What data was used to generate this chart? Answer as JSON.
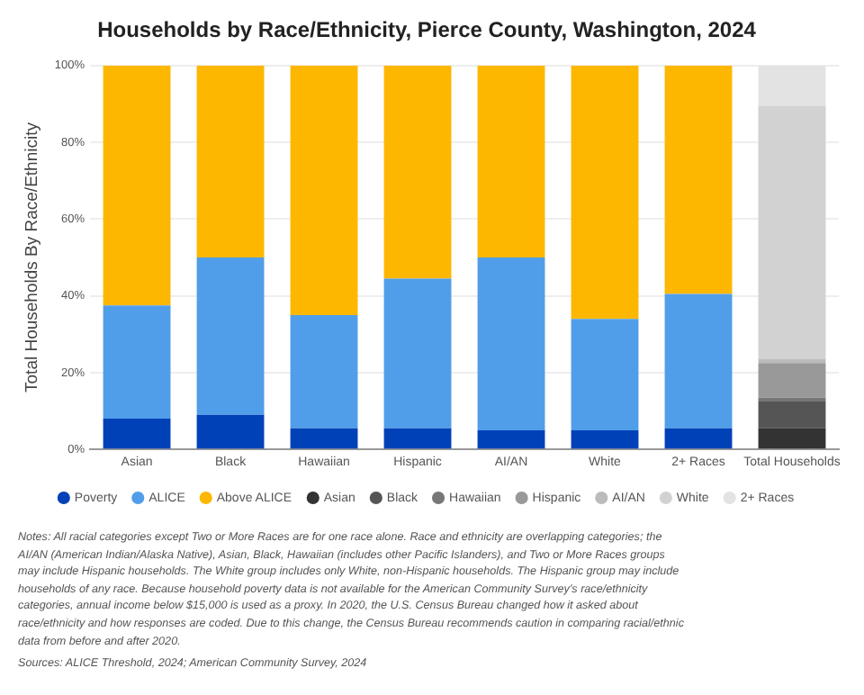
{
  "chart_data": {
    "type": "bar",
    "title": "Households by Race/Ethnicity, Pierce County, Washington, 2024",
    "ylabel": "Total Households By Race/Ethnicity",
    "categories": [
      "Asian",
      "Black",
      "Hawaiian",
      "Hispanic",
      "AI/AN",
      "White",
      "2+ Races",
      "Total Households"
    ],
    "stacked": true,
    "ylim": [
      0,
      100
    ],
    "yticks": [
      {
        "value": 0,
        "label": "0%"
      },
      {
        "value": 20,
        "label": "20%"
      },
      {
        "value": 40,
        "label": "40%"
      },
      {
        "value": 60,
        "label": "60%"
      },
      {
        "value": 80,
        "label": "80%"
      },
      {
        "value": 100,
        "label": "100%"
      }
    ],
    "grid": "y",
    "legend": "bottom",
    "series": [
      {
        "name": "Poverty",
        "color": "#0041b8",
        "values": [
          8,
          9,
          5.5,
          5.5,
          5,
          5,
          5.5,
          null
        ]
      },
      {
        "name": "ALICE",
        "color": "#509ee9",
        "values": [
          29.5,
          41,
          29.5,
          39,
          45,
          29,
          35,
          null
        ]
      },
      {
        "name": "Above ALICE",
        "color": "#fdb700",
        "values": [
          62.5,
          50,
          65,
          55.5,
          50,
          66,
          59.5,
          null
        ]
      },
      {
        "name": "Asian",
        "color": "#333333",
        "values": [
          null,
          null,
          null,
          null,
          null,
          null,
          null,
          5.5
        ]
      },
      {
        "name": "Black",
        "color": "#555555",
        "values": [
          null,
          null,
          null,
          null,
          null,
          null,
          null,
          7
        ]
      },
      {
        "name": "Hawaiian",
        "color": "#777777",
        "values": [
          null,
          null,
          null,
          null,
          null,
          null,
          null,
          1
        ]
      },
      {
        "name": "Hispanic",
        "color": "#999999",
        "values": [
          null,
          null,
          null,
          null,
          null,
          null,
          null,
          9
        ]
      },
      {
        "name": "AI/AN",
        "color": "#bbbbbb",
        "values": [
          null,
          null,
          null,
          null,
          null,
          null,
          null,
          1
        ]
      },
      {
        "name": "White",
        "color": "#d2d2d2",
        "values": [
          null,
          null,
          null,
          null,
          null,
          null,
          null,
          66
        ]
      },
      {
        "name": "2+ Races",
        "color": "#e3e3e3",
        "values": [
          null,
          null,
          null,
          null,
          null,
          null,
          null,
          10.5
        ]
      }
    ],
    "annotations": [
      "Notes: All racial categories except Two or More Races are for one race alone. Race and ethnicity are overlapping categories; the AI/AN (American Indian/Alaska Native), Asian, Black, Hawaiian (includes other Pacific Islanders), and Two or More Races groups may include Hispanic households. The White group includes only White, non-Hispanic households. The Hispanic group may include households of any race. Because household poverty data is not available for the American Community Survey’s race/ethnicity categories, annual income below $15,000 is used as a proxy. In 2020, the U.S. Census Bureau changed how it asked about race/ethnicity and how responses are coded. Due to this change, the Census Bureau recommends caution in comparing racial/ethnic data from before and after 2020.",
      "Sources: ALICE Threshold, 2024; American Community Survey, 2024"
    ]
  }
}
